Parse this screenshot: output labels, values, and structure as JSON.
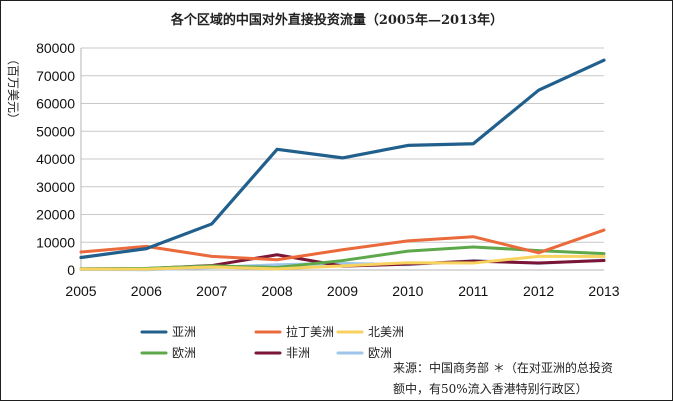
{
  "chart_data": {
    "type": "line",
    "title": "各个区域的中国对外直接投资流量（2005年—2013年）",
    "ylabel": "（百万美元）",
    "xlabel": "",
    "x": [
      2005,
      2006,
      2007,
      2008,
      2009,
      2010,
      2011,
      2012,
      2013
    ],
    "ylim": [
      0,
      80000
    ],
    "yticks": [
      0,
      10000,
      20000,
      30000,
      40000,
      50000,
      60000,
      70000,
      80000
    ],
    "grid": true,
    "legend_position": "bottom",
    "series": [
      {
        "name": "亚洲",
        "color": "#215f8c",
        "values": [
          4500,
          7700,
          16600,
          43500,
          40400,
          44900,
          45500,
          64800,
          75600
        ]
      },
      {
        "name": "拉丁美洲",
        "color": "#ea6a3b",
        "values": [
          6500,
          8500,
          4900,
          3700,
          7300,
          10500,
          12000,
          6200,
          14400
        ]
      },
      {
        "name": "北美洲",
        "color": "#f8d25f",
        "values": [
          300,
          300,
          1100,
          400,
          1500,
          2600,
          2500,
          4900,
          4900
        ]
      },
      {
        "name": "欧洲",
        "color": "#5ea84c",
        "values": [
          400,
          600,
          1500,
          900,
          3400,
          6800,
          8300,
          7000,
          5900
        ]
      },
      {
        "name": "非洲",
        "color": "#7b1535",
        "values": [
          400,
          500,
          1600,
          5500,
          1400,
          2100,
          3200,
          2500,
          3400
        ]
      },
      {
        "name": "欧洲",
        "color": "#9fc6ea",
        "values": [
          200,
          100,
          900,
          1900,
          2400,
          1900,
          3400,
          2400,
          3600
        ]
      }
    ]
  },
  "source_note": {
    "line1": "来源：中国商务部 ＊（在对亚洲的总投资",
    "line2": "额中，有50%流入香港特别行政区）"
  }
}
